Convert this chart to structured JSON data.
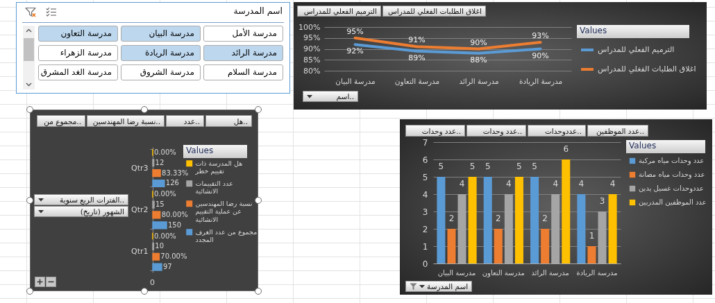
{
  "chart_data": [
    {
      "type": "other",
      "title": "اسم المدرسة",
      "categories": [
        "مدرسة الأمل",
        "مدرسة البيان",
        "مدرسة التعاون",
        "مدرسة الرائد",
        "مدرسة الريادة",
        "مدرسة الزهراء",
        "مدرسة السلام",
        "مدرسة الشروق",
        "مدرسة الغد المشرق"
      ],
      "colors": [
        "#ffffff",
        "#bdd7ee",
        "#bdd7ee",
        "#bdd7ee",
        "#bdd7ee",
        "#ffffff",
        "#ffffff",
        "#ffffff",
        "#ffffff"
      ]
    },
    {
      "type": "line",
      "categories": [
        "مدرسة البيان",
        "مدرسة التعاون",
        "مدرسة الرائد",
        "مدرسة الريادة"
      ],
      "series": [
        {
          "name": "الترميم الفعلي للمدراس",
          "color": "#5b9bd5",
          "values": [
            92,
            89,
            88,
            90
          ],
          "value_labels": [
            "92%",
            "89%",
            "88%",
            "90%"
          ]
        },
        {
          "name": "اغلاق الطلبات الفغلي للمدراس",
          "color": "#ed7d31",
          "values": [
            95,
            91,
            90,
            93
          ],
          "value_labels": [
            "95%",
            "91%",
            "90%",
            "93%"
          ]
        }
      ],
      "ylim": [
        80,
        100
      ],
      "yticks": [
        {
          "value": 80,
          "label": "80%"
        },
        {
          "value": 85,
          "label": "85%"
        },
        {
          "value": 90,
          "label": "90%"
        },
        {
          "value": 95,
          "label": "95%"
        },
        {
          "value": 100,
          "label": "100%"
        }
      ],
      "grid": "y",
      "legend": "right",
      "legend_title": "Values",
      "annotations": [
        "الترميم الفعلي للمدراس",
        "اغلاق الطلبات الفغلي للمدراس",
        "اسم.."
      ]
    },
    {
      "type": "bar",
      "orientation": "horizontal",
      "categories": [
        "Qtr3",
        "Qtr2",
        "Qtr1"
      ],
      "series": [
        {
          "name": "هل المدرسة ذات تقييم خطر",
          "color": "#ffc000",
          "values": [
            0,
            0,
            0
          ],
          "value_labels": [
            "0.00%",
            "0.00%",
            "0.00%"
          ]
        },
        {
          "name": "عدد التقييمات الانشائية",
          "color": "#a5a5a5",
          "values": [
            12,
            15,
            10
          ],
          "value_labels": [
            "12",
            "15",
            "10"
          ]
        },
        {
          "name": "نسبة رضا المهندسين عن عملية التقييم الانشائية",
          "color": "#ed7d31",
          "values": [
            83.33,
            80,
            70
          ],
          "value_labels": [
            "83.33%",
            "80.00%",
            "70.00%"
          ]
        },
        {
          "name": "مجموع من عدد الغرف المجدد",
          "color": "#5b9bd5",
          "values": [
            126,
            150,
            97
          ],
          "value_labels": [
            "126",
            "150",
            "97"
          ]
        }
      ],
      "legend": "right",
      "legend_title": "Values",
      "annotations": [
        "مجموع من..",
        "نسبة رضا المهندسين..",
        "عدد..",
        "هل..",
        "الفترات الربع سنوية..",
        "الشهور (تاريخ)",
        "0"
      ]
    },
    {
      "type": "bar",
      "categories": [
        "مدرسة البيان",
        "مدرسة التعاون",
        "مدرسة الرائد",
        "مدرسة الريادة"
      ],
      "series": [
        {
          "name": "عدد وحدات مياه مركبة",
          "color": "#5b9bd5",
          "values": [
            5,
            5,
            5,
            4
          ]
        },
        {
          "name": "عدد وحدات مياه مصانة",
          "color": "#ed7d31",
          "values": [
            2,
            2,
            2,
            1
          ]
        },
        {
          "name": "عددوحدات غسيل يدين",
          "color": "#a5a5a5",
          "values": [
            4,
            4,
            4,
            3
          ]
        },
        {
          "name": "عدد الموظفين المدربين",
          "color": "#ffc000",
          "values": [
            5,
            5,
            6,
            4
          ]
        }
      ],
      "ylim": [
        0,
        7
      ],
      "yticks": [
        0,
        1,
        2,
        3,
        4,
        5,
        6,
        7
      ],
      "grid": "y",
      "data_labels": true,
      "legend": "right",
      "legend_title": "Values",
      "annotations": [
        "عدد وحدات..",
        "عدد وحدات..",
        "عددوحدات..",
        "عدد الموظفين..",
        "اسم المدرسة"
      ]
    }
  ]
}
